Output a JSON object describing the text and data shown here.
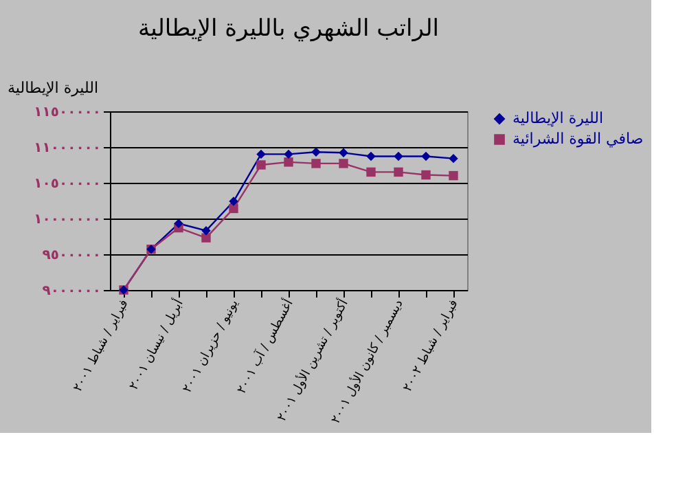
{
  "chart_data": {
    "type": "line",
    "title": "الراتب الشهري بالليرة الإيطالية",
    "ylabel": "الليرة الإيطالية",
    "categories": [
      "فبراير / شباط ٢٠٠١",
      null,
      "أبريل / نيسان ٢٠٠١",
      null,
      "يونيو / حزيران ٢٠٠١",
      null,
      "أغسطس / آب ٢٠٠١",
      null,
      "أكتوبر / تشرين الأول ٢٠٠١",
      null,
      "ديسمبر / كانون الأول ٢٠٠١",
      null,
      "فبراير / شباط ٢٠٠٢"
    ],
    "series": [
      {
        "name": "الليرة الإيطالية",
        "color": "#000099",
        "marker": "diamond",
        "values": [
          9000000,
          9570000,
          9930000,
          9830000,
          10240000,
          10900000,
          10900000,
          10930000,
          10920000,
          10870000,
          10870000,
          10870000,
          10840000
        ]
      },
      {
        "name": "صافي القوة الشرائية",
        "color": "#993366",
        "marker": "square",
        "values": [
          9000000,
          9570000,
          9870000,
          9730000,
          10140000,
          10750000,
          10790000,
          10770000,
          10770000,
          10650000,
          10650000,
          10610000,
          10600000
        ]
      }
    ],
    "ylim": [
      9000000,
      11500000
    ],
    "yticks": [
      {
        "value": 9000000,
        "label": "٩٠٠٠٠٠٠"
      },
      {
        "value": 9500000,
        "label": "٩٥٠٠٠٠٠"
      },
      {
        "value": 10000000,
        "label": "١٠٠٠٠٠٠٠"
      },
      {
        "value": 10500000,
        "label": "١٠٥٠٠٠٠٠"
      },
      {
        "value": 11000000,
        "label": "١١٠٠٠٠٠٠"
      },
      {
        "value": 11500000,
        "label": "١١٥٠٠٠٠٠"
      }
    ],
    "grid": "y",
    "legend": "right"
  }
}
